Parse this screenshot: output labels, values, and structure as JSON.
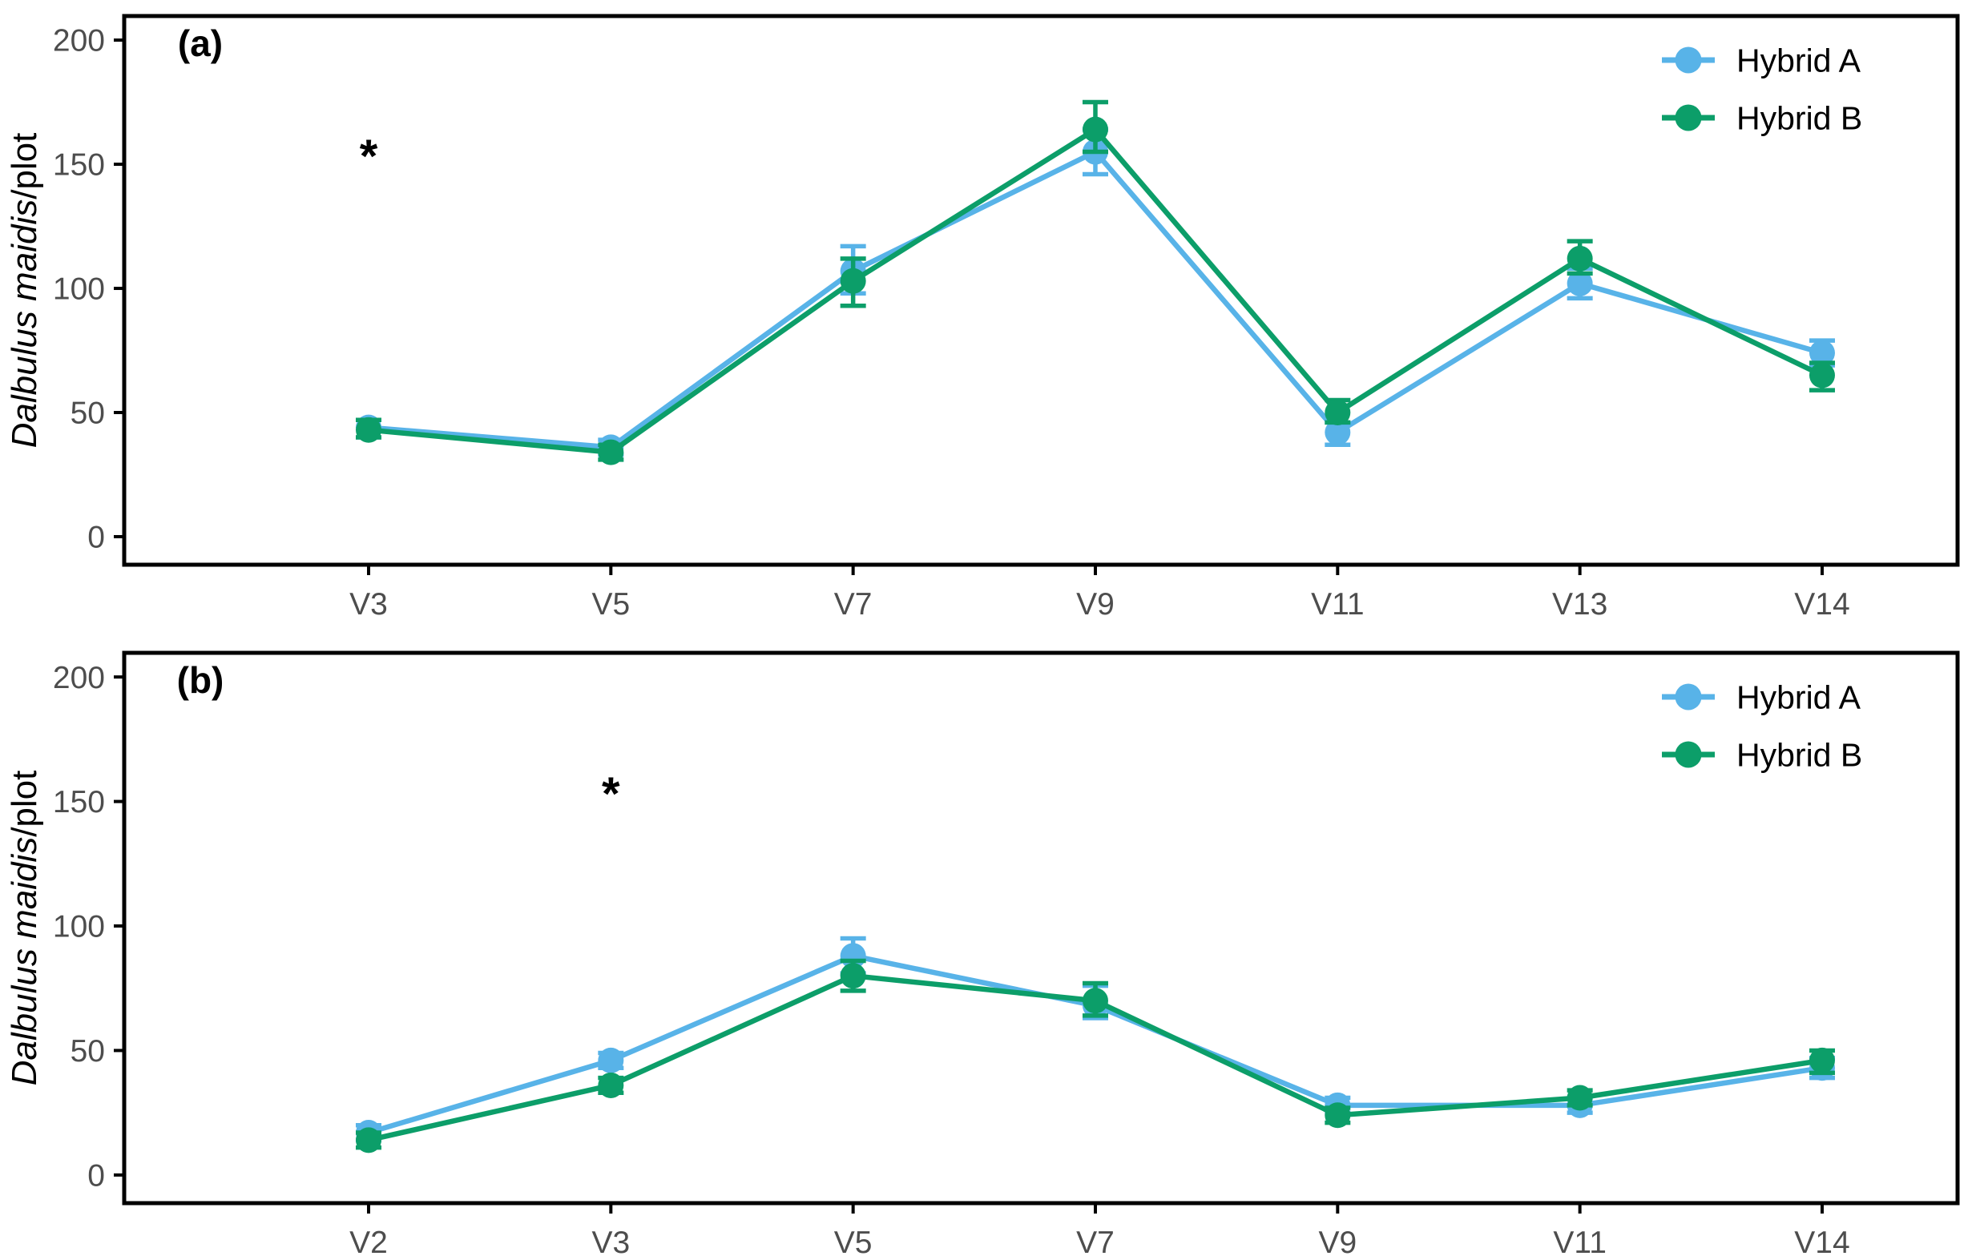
{
  "figure": {
    "background": "#ffffff",
    "axis_color": "#000000",
    "tick_label_color": "#4d4d4d"
  },
  "chart_data": [
    {
      "type": "line",
      "panel_label": "(a)",
      "ylabel_italic": "Dalbulus maidis",
      "ylabel_regular": "/plot",
      "categories": [
        "V3",
        "V5",
        "V7",
        "V9",
        "V11",
        "V13",
        "V14"
      ],
      "yticks": [
        0,
        50,
        100,
        150,
        200
      ],
      "ylim": [
        -11.3,
        209.7
      ],
      "grid": false,
      "legend_position": "top-right",
      "series": [
        {
          "name": "Hybrid A",
          "color": "#58B3E8",
          "values": [
            44,
            36,
            107,
            155,
            42,
            102,
            74
          ],
          "err_low": [
            40,
            33,
            98,
            146,
            37,
            96,
            69
          ],
          "err_high": [
            47,
            39,
            117,
            164,
            46,
            108,
            79
          ]
        },
        {
          "name": "Hybrid B",
          "color": "#0C9E69",
          "values": [
            43,
            34,
            103,
            164,
            50,
            112,
            65
          ],
          "err_low": [
            40,
            31,
            93,
            155,
            46,
            106,
            59
          ],
          "err_high": [
            47,
            37,
            112,
            175,
            55,
            119,
            70
          ]
        }
      ],
      "annotations": [
        {
          "category": "V3",
          "value": 153,
          "text": "*",
          "color": "#000000"
        }
      ]
    },
    {
      "type": "line",
      "panel_label": "(b)",
      "ylabel_italic": "Dalbulus maidis",
      "ylabel_regular": "/plot",
      "categories": [
        "V2",
        "V3",
        "V5",
        "V7",
        "V9",
        "V11",
        "V14"
      ],
      "yticks": [
        0,
        50,
        100,
        150,
        200
      ],
      "ylim": [
        -11.3,
        209.7
      ],
      "grid": false,
      "legend_position": "top-right",
      "series": [
        {
          "name": "Hybrid A",
          "color": "#58B3E8",
          "values": [
            17,
            46,
            88,
            68,
            28,
            28,
            43
          ],
          "err_low": [
            14,
            43,
            81,
            63,
            25,
            25,
            39
          ],
          "err_high": [
            20,
            49,
            95,
            76,
            31,
            31,
            47
          ]
        },
        {
          "name": "Hybrid B",
          "color": "#0C9E69",
          "values": [
            14,
            36,
            80,
            70,
            24,
            31,
            46
          ],
          "err_low": [
            11,
            33,
            74,
            64,
            21,
            28,
            41
          ],
          "err_high": [
            17,
            39,
            86,
            77,
            27,
            34,
            50
          ]
        }
      ],
      "annotations": [
        {
          "category": "V3",
          "value": 153,
          "text": "*",
          "color": "#000000"
        }
      ]
    }
  ]
}
